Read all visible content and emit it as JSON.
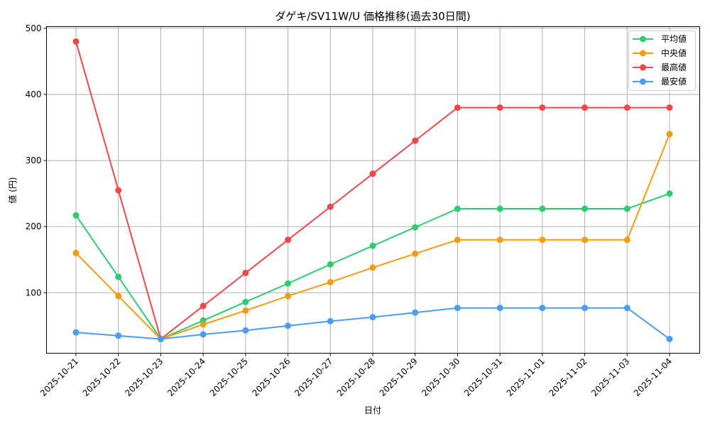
{
  "chart_data": {
    "type": "line",
    "title": "ダゲキ/SV11W/U 価格推移(過去30日間)",
    "xlabel": "日付",
    "ylabel": "値 (円)",
    "categories": [
      "2025-10-21",
      "2025-10-22",
      "2025-10-23",
      "2025-10-24",
      "2025-10-25",
      "2025-10-26",
      "2025-10-27",
      "2025-10-28",
      "2025-10-29",
      "2025-10-30",
      "2025-10-31",
      "2025-11-01",
      "2025-11-02",
      "2025-11-03",
      "2025-11-04"
    ],
    "series": [
      {
        "name": "平均値",
        "color": "#2ecc71",
        "values": [
          217,
          124,
          30,
          58,
          86,
          114,
          143,
          171,
          199,
          227,
          227,
          227,
          227,
          227,
          250
        ]
      },
      {
        "name": "中央値",
        "color": "#f39c12",
        "values": [
          160,
          95,
          30,
          52,
          73,
          95,
          116,
          138,
          159,
          180,
          180,
          180,
          180,
          180,
          340
        ]
      },
      {
        "name": "最高値",
        "color": "#f04848",
        "values": [
          480,
          255,
          30,
          80,
          130,
          180,
          230,
          280,
          330,
          380,
          380,
          380,
          380,
          380,
          380
        ]
      },
      {
        "name": "最安値",
        "color": "#4b9cf5",
        "values": [
          40,
          35,
          30,
          37,
          43,
          50,
          57,
          63,
          70,
          77,
          77,
          77,
          77,
          77,
          30
        ]
      }
    ],
    "yticks": [
      100,
      200,
      300,
      400,
      500
    ],
    "ylim": [
      8.5,
      502.5
    ],
    "grid": true,
    "legend_position": "upper right"
  }
}
